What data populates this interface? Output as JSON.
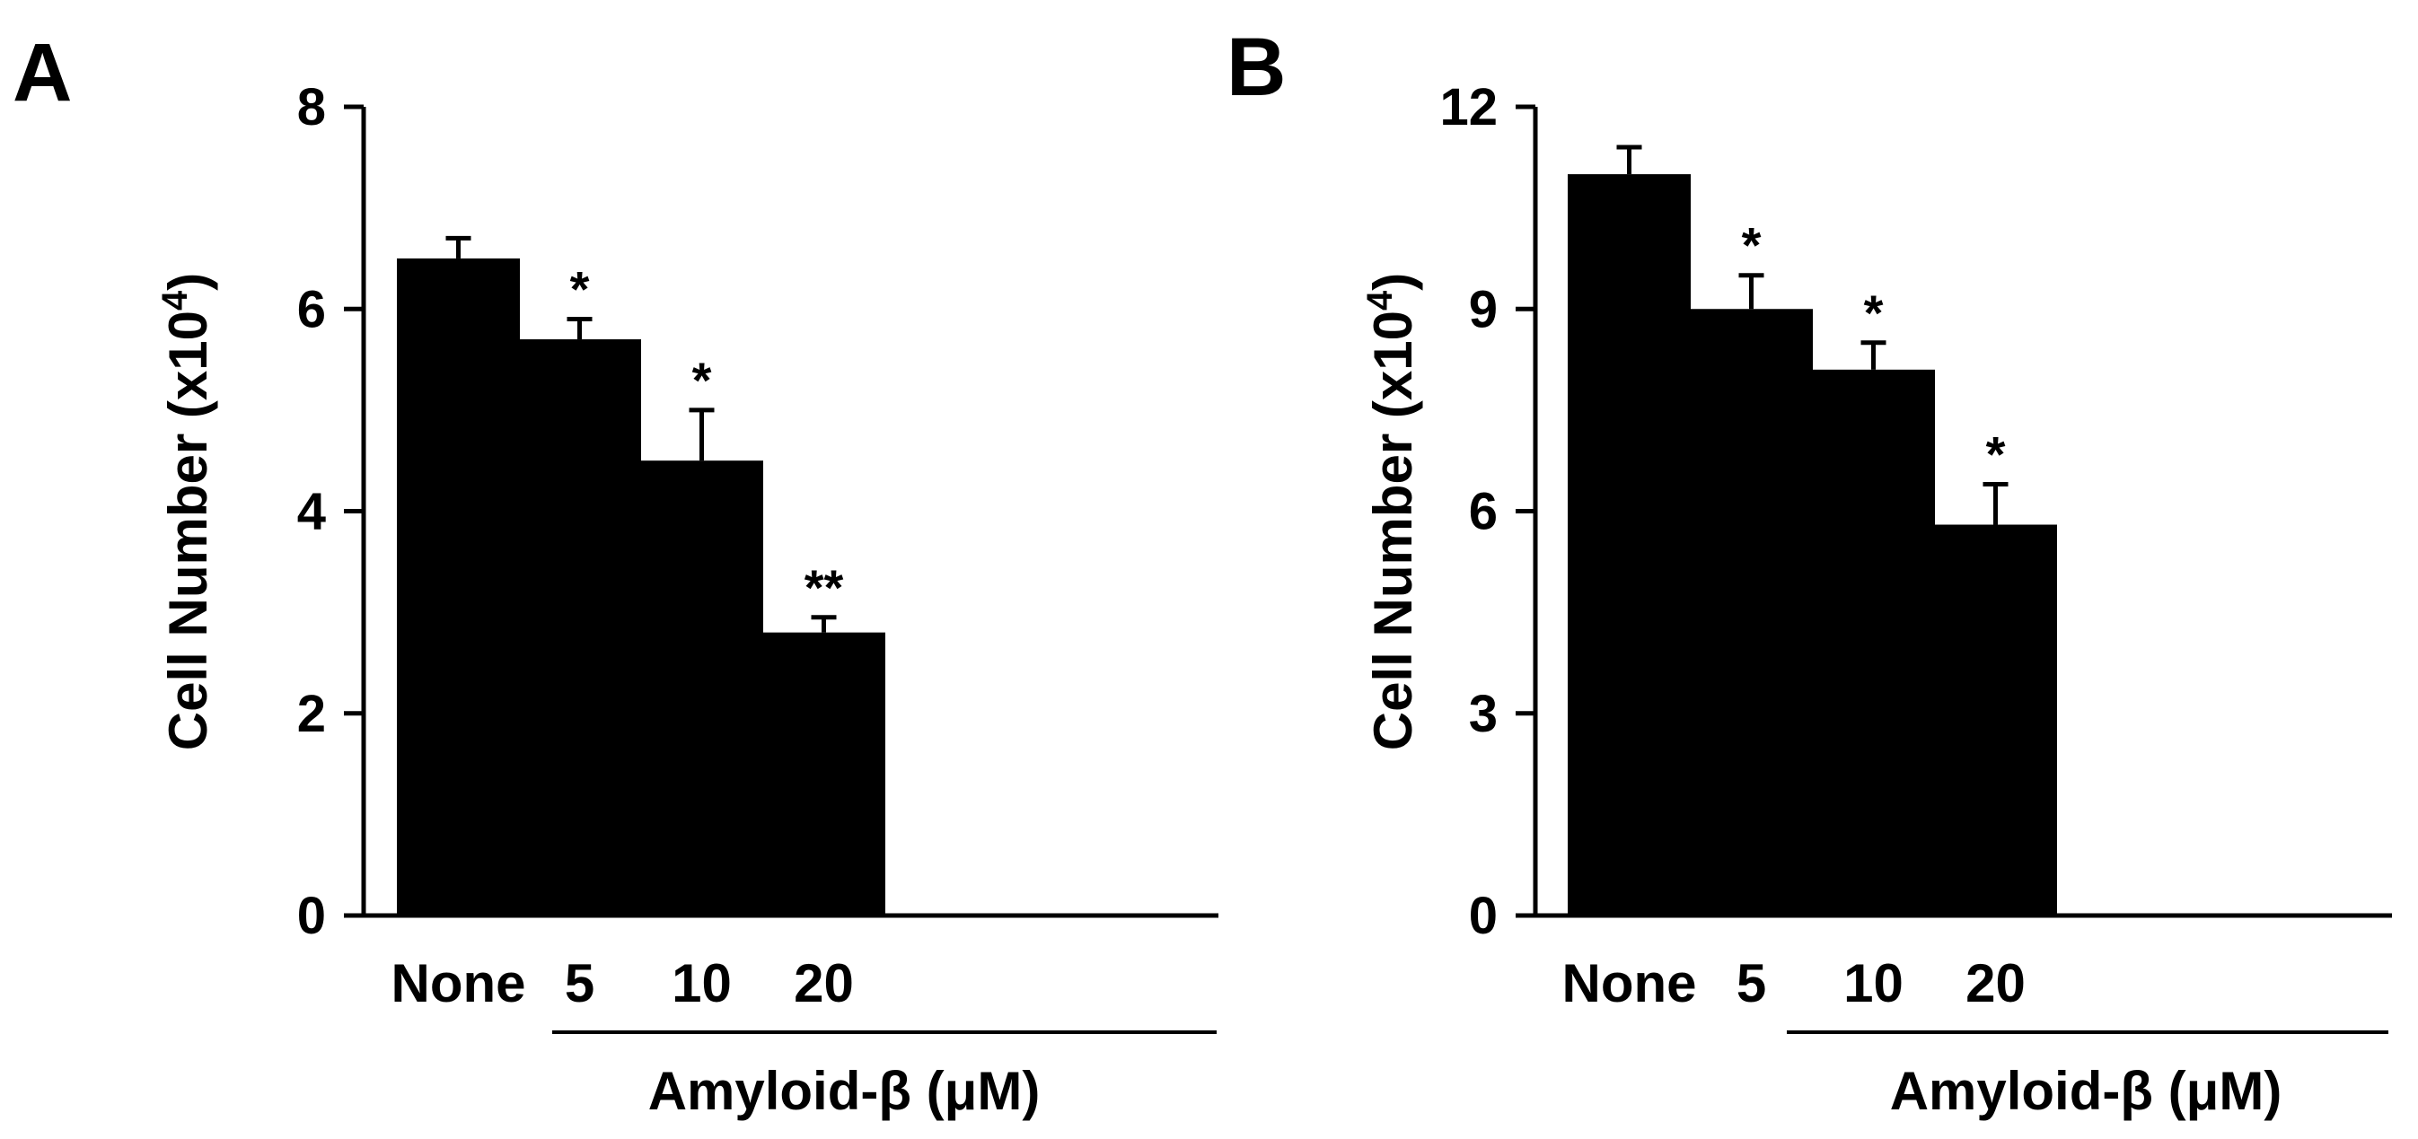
{
  "chart_data": [
    {
      "type": "bar",
      "panel": "A",
      "categories": [
        "None",
        "5",
        "10",
        "20"
      ],
      "values": [
        6.5,
        5.7,
        4.5,
        2.8
      ],
      "errors": [
        0.2,
        0.2,
        0.5,
        0.15
      ],
      "significance": [
        "",
        "*",
        "*",
        "**"
      ],
      "ylabel": "Cell Number (x10",
      "ylabel_sup": "4",
      "ylabel_end": ")",
      "group_label": "Amyloid-β (μM)",
      "ylim": [
        0,
        8
      ],
      "yticks": [
        0,
        2,
        4,
        6,
        8
      ],
      "bar_color": "#000000"
    },
    {
      "type": "bar",
      "panel": "B",
      "categories": [
        "None",
        "5",
        "10",
        "20"
      ],
      "values": [
        11.0,
        9.0,
        8.1,
        5.8
      ],
      "errors": [
        0.4,
        0.5,
        0.4,
        0.6
      ],
      "significance": [
        "",
        "*",
        "*",
        "*"
      ],
      "ylabel": "Cell Number (x10",
      "ylabel_sup": "4",
      "ylabel_end": ")",
      "group_label": "Amyloid-β (μM)",
      "ylim": [
        0,
        12
      ],
      "yticks": [
        0,
        3,
        6,
        9,
        12
      ],
      "bar_color": "#000000"
    }
  ]
}
